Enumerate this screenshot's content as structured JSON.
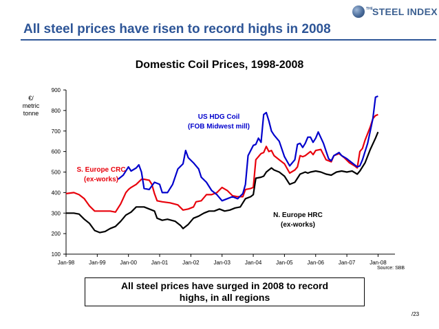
{
  "logo": {
    "small_text": "THE",
    "text": "STEEL INDEX",
    "icon": "globe-icon"
  },
  "slide_title": "All steel prices have risen to record highs in 2008",
  "y_unit": [
    "€/",
    "metric",
    "tonne"
  ],
  "source": "Source: SBB",
  "callout": "All steel prices have surged in 2008 to record highs, in all regions",
  "page_number": "/23",
  "colors": {
    "title": "#2D5597",
    "us_hdg": "#0000CC",
    "s_europe": "#E8000B",
    "n_europe": "#000000"
  },
  "chart_data": {
    "type": "line",
    "title": "Domestic Coil Prices, 1998-2008",
    "xlabel": "",
    "ylabel": "€/ metric tonne",
    "ylim": [
      100,
      900
    ],
    "yticks": [
      100,
      200,
      300,
      400,
      500,
      600,
      700,
      800,
      900
    ],
    "xlim": [
      0,
      129
    ],
    "xtick_labels": [
      "Jan-98",
      "Jan-99",
      "Jan-00",
      "Jan-01",
      "Jan-02",
      "Jan-03",
      "Jan-04",
      "Jan-05",
      "Jan-06",
      "Jan-07",
      "Jan-08"
    ],
    "grid": false,
    "legend": "inline labels",
    "series": [
      {
        "name": "US HDG Coil (FOB Midwest mill)",
        "label_lines": [
          "US HDG Coil",
          "(FOB Midwest mill)"
        ],
        "points": [
          [
            20,
            465
          ],
          [
            22,
            485
          ],
          [
            24,
            525
          ],
          [
            25,
            505
          ],
          [
            27,
            520
          ],
          [
            28,
            535
          ],
          [
            29,
            500
          ],
          [
            30,
            420
          ],
          [
            32,
            415
          ],
          [
            34,
            450
          ],
          [
            36,
            440
          ],
          [
            37,
            400
          ],
          [
            39,
            400
          ],
          [
            41,
            440
          ],
          [
            43,
            515
          ],
          [
            45,
            540
          ],
          [
            46,
            605
          ],
          [
            47,
            570
          ],
          [
            49,
            545
          ],
          [
            51,
            515
          ],
          [
            52,
            475
          ],
          [
            54,
            450
          ],
          [
            56,
            410
          ],
          [
            58,
            390
          ],
          [
            60,
            360
          ],
          [
            62,
            370
          ],
          [
            64,
            380
          ],
          [
            66,
            370
          ],
          [
            68,
            395
          ],
          [
            69,
            440
          ],
          [
            70,
            580
          ],
          [
            72,
            630
          ],
          [
            73,
            635
          ],
          [
            74,
            665
          ],
          [
            75,
            645
          ],
          [
            76,
            780
          ],
          [
            77,
            790
          ],
          [
            78,
            750
          ],
          [
            79,
            700
          ],
          [
            80,
            680
          ],
          [
            82,
            650
          ],
          [
            84,
            575
          ],
          [
            86,
            530
          ],
          [
            88,
            560
          ],
          [
            89,
            635
          ],
          [
            90,
            640
          ],
          [
            91,
            620
          ],
          [
            92,
            640
          ],
          [
            93,
            670
          ],
          [
            94,
            670
          ],
          [
            95,
            645
          ],
          [
            96,
            665
          ],
          [
            97,
            695
          ],
          [
            99,
            640
          ],
          [
            101,
            565
          ],
          [
            102,
            555
          ],
          [
            103,
            580
          ],
          [
            105,
            595
          ],
          [
            106,
            580
          ],
          [
            108,
            565
          ],
          [
            110,
            545
          ],
          [
            112,
            525
          ],
          [
            113,
            530
          ],
          [
            114,
            560
          ],
          [
            116,
            640
          ],
          [
            117,
            700
          ],
          [
            118,
            760
          ],
          [
            119,
            865
          ],
          [
            120,
            870
          ]
        ]
      },
      {
        "name": "S. Europe CRC (ex-works)",
        "label_lines": [
          "S. Europe CRC",
          "(ex-works)"
        ],
        "points": [
          [
            0,
            395
          ],
          [
            3,
            400
          ],
          [
            5,
            390
          ],
          [
            7,
            370
          ],
          [
            9,
            335
          ],
          [
            11,
            310
          ],
          [
            14,
            310
          ],
          [
            17,
            310
          ],
          [
            19,
            305
          ],
          [
            21,
            345
          ],
          [
            23,
            400
          ],
          [
            24,
            415
          ],
          [
            25,
            425
          ],
          [
            27,
            440
          ],
          [
            29,
            465
          ],
          [
            30,
            465
          ],
          [
            32,
            460
          ],
          [
            33,
            440
          ],
          [
            34,
            395
          ],
          [
            35,
            360
          ],
          [
            37,
            355
          ],
          [
            40,
            350
          ],
          [
            43,
            340
          ],
          [
            45,
            315
          ],
          [
            47,
            320
          ],
          [
            49,
            330
          ],
          [
            50,
            355
          ],
          [
            52,
            360
          ],
          [
            54,
            390
          ],
          [
            56,
            390
          ],
          [
            58,
            400
          ],
          [
            60,
            425
          ],
          [
            62,
            410
          ],
          [
            64,
            385
          ],
          [
            66,
            380
          ],
          [
            68,
            380
          ],
          [
            69,
            415
          ],
          [
            71,
            420
          ],
          [
            72,
            425
          ],
          [
            73,
            560
          ],
          [
            75,
            590
          ],
          [
            76,
            595
          ],
          [
            77,
            625
          ],
          [
            78,
            600
          ],
          [
            79,
            605
          ],
          [
            80,
            580
          ],
          [
            82,
            560
          ],
          [
            84,
            540
          ],
          [
            86,
            495
          ],
          [
            88,
            510
          ],
          [
            89,
            525
          ],
          [
            90,
            580
          ],
          [
            91,
            575
          ],
          [
            92,
            580
          ],
          [
            94,
            600
          ],
          [
            95,
            585
          ],
          [
            96,
            605
          ],
          [
            98,
            610
          ],
          [
            99,
            585
          ],
          [
            100,
            560
          ],
          [
            102,
            550
          ],
          [
            103,
            580
          ],
          [
            105,
            590
          ],
          [
            107,
            570
          ],
          [
            109,
            545
          ],
          [
            111,
            530
          ],
          [
            112,
            520
          ],
          [
            113,
            600
          ],
          [
            114,
            615
          ],
          [
            115,
            655
          ],
          [
            117,
            720
          ],
          [
            118,
            760
          ],
          [
            119,
            775
          ],
          [
            120,
            780
          ]
        ]
      },
      {
        "name": "N. Europe HRC (ex-works)",
        "label_lines": [
          "N. Europe HRC",
          "(ex-works)"
        ],
        "points": [
          [
            0,
            300
          ],
          [
            3,
            300
          ],
          [
            5,
            295
          ],
          [
            7,
            270
          ],
          [
            9,
            250
          ],
          [
            11,
            215
          ],
          [
            13,
            205
          ],
          [
            15,
            210
          ],
          [
            17,
            225
          ],
          [
            19,
            235
          ],
          [
            21,
            260
          ],
          [
            23,
            290
          ],
          [
            25,
            305
          ],
          [
            27,
            330
          ],
          [
            30,
            330
          ],
          [
            32,
            320
          ],
          [
            34,
            310
          ],
          [
            35,
            275
          ],
          [
            37,
            265
          ],
          [
            39,
            270
          ],
          [
            42,
            260
          ],
          [
            44,
            240
          ],
          [
            45,
            225
          ],
          [
            47,
            245
          ],
          [
            49,
            275
          ],
          [
            51,
            285
          ],
          [
            53,
            300
          ],
          [
            55,
            310
          ],
          [
            57,
            310
          ],
          [
            59,
            320
          ],
          [
            61,
            310
          ],
          [
            63,
            315
          ],
          [
            65,
            325
          ],
          [
            67,
            330
          ],
          [
            69,
            370
          ],
          [
            71,
            380
          ],
          [
            72,
            390
          ],
          [
            73,
            470
          ],
          [
            75,
            475
          ],
          [
            76,
            480
          ],
          [
            77,
            500
          ],
          [
            78,
            510
          ],
          [
            79,
            520
          ],
          [
            80,
            510
          ],
          [
            82,
            500
          ],
          [
            84,
            480
          ],
          [
            86,
            440
          ],
          [
            88,
            450
          ],
          [
            89,
            470
          ],
          [
            90,
            490
          ],
          [
            92,
            500
          ],
          [
            93,
            495
          ],
          [
            94,
            500
          ],
          [
            96,
            505
          ],
          [
            98,
            500
          ],
          [
            100,
            490
          ],
          [
            102,
            485
          ],
          [
            104,
            500
          ],
          [
            106,
            505
          ],
          [
            108,
            500
          ],
          [
            110,
            505
          ],
          [
            112,
            490
          ],
          [
            113,
            505
          ],
          [
            115,
            545
          ],
          [
            117,
            610
          ],
          [
            119,
            665
          ],
          [
            120,
            695
          ]
        ]
      }
    ]
  }
}
